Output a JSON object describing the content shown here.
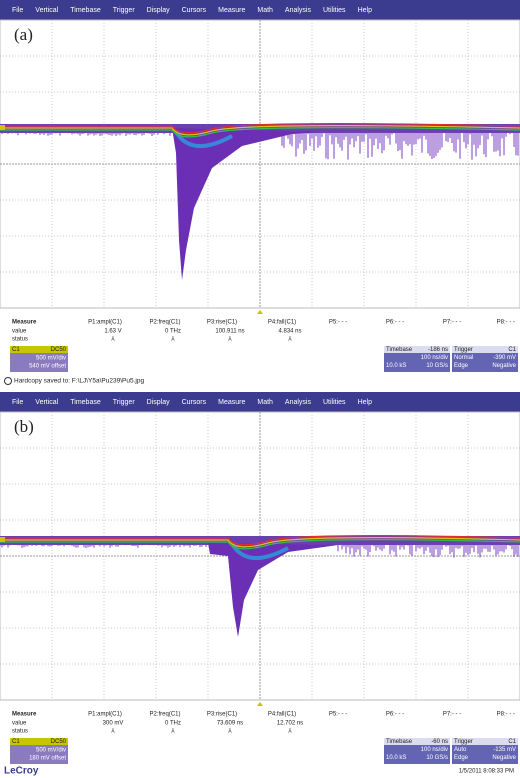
{
  "menu": [
    "File",
    "Vertical",
    "Timebase",
    "Trigger",
    "Display",
    "Cursors",
    "Measure",
    "Math",
    "Analysis",
    "Utilities",
    "Help"
  ],
  "measure_headers": [
    "Measure",
    "P1:ampl(C1)",
    "P2:freq(C1)",
    "P3:rise(C1)",
    "P4:fall(C1)",
    "P5:- - -",
    "P6:- - -",
    "P7:- - -",
    "P8:- - -"
  ],
  "panels": [
    {
      "label": "(a)",
      "value_row": [
        "value",
        "1.63 V",
        "0 THz",
        "100.911 ns",
        "4.834 ns"
      ],
      "status_row": [
        "status",
        "⅄",
        "⅄",
        "⅄",
        "⅄"
      ],
      "channel": [
        "C1",
        "DC50",
        "500 mV/div",
        "540 mV offset"
      ],
      "timebase": [
        "Timebase",
        "-186 ns",
        "100 ns/div",
        "10.0 kS",
        "10 GS/s"
      ],
      "trigger": [
        "Trigger",
        "C1",
        "Normal",
        "-390 mV",
        "Edge",
        "Negative"
      ]
    },
    {
      "label": "(b)",
      "value_row": [
        "value",
        "300 mV",
        "0 THz",
        "73.609 ns",
        "12.702 ns"
      ],
      "status_row": [
        "status",
        "⅄",
        "⅄",
        "⅄",
        "⅄"
      ],
      "channel": [
        "C1",
        "DC50",
        "500 mV/div",
        "180 mV offset"
      ],
      "timebase": [
        "Timebase",
        "-60 ns",
        "100 ns/div",
        "10.0 kS",
        "10 GS/s"
      ],
      "trigger": [
        "Trigger",
        "C1",
        "Auto",
        "-135 mV",
        "Edge",
        "Negative"
      ]
    }
  ],
  "hardcopy": "Hardcopy saved to: F:\\LJ\\Y5a\\Pu239\\Pu5.jpg",
  "footer": {
    "brand": "LeCroy",
    "timestamp": "1/5/2011 8:08:33 PM"
  }
}
